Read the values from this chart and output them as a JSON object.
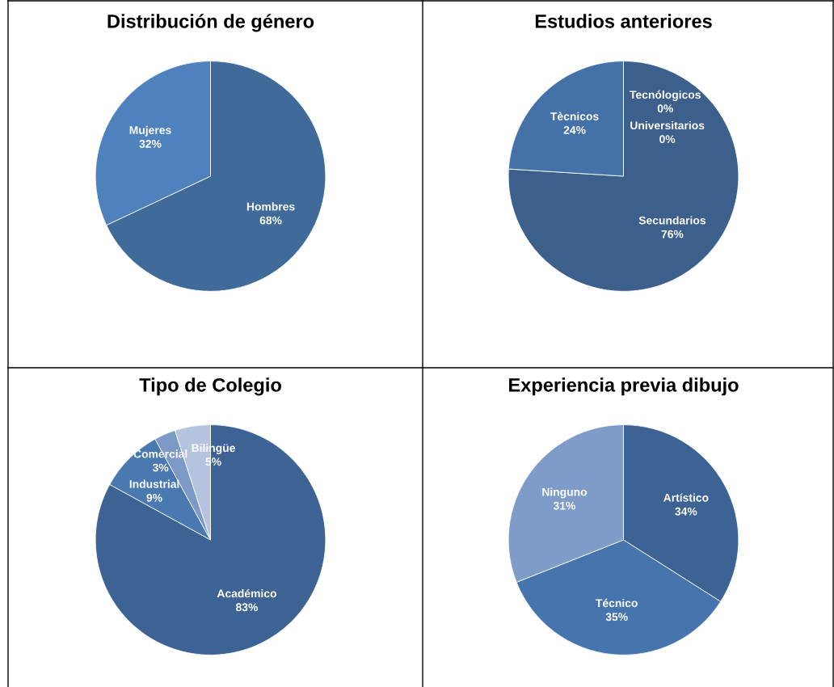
{
  "chart_data": [
    {
      "type": "pie",
      "title": "Distribución de género",
      "categories": [
        "Hombres",
        "Mujeres"
      ],
      "values": [
        68,
        32
      ],
      "colors": [
        "#3f6a9a",
        "#4f81bd"
      ],
      "value_labels": [
        "68%",
        "32%"
      ],
      "legend": false
    },
    {
      "type": "pie",
      "title": "Estudios anteriores",
      "categories": [
        "Secundarios",
        "Tècnicos",
        "Tecnólogicos",
        "Universitarios"
      ],
      "values": [
        76,
        24,
        0,
        0
      ],
      "colors": [
        "#3d5f8c",
        "#4471a8",
        "#4f81bd",
        "#7f9bc7"
      ],
      "value_labels": [
        "76%",
        "24%",
        "0%",
        "0%"
      ],
      "legend": false
    },
    {
      "type": "pie",
      "title": "Tipo de Colegio",
      "categories": [
        "Académico",
        "Industrial",
        "Comercial",
        "Bilingüe"
      ],
      "values": [
        83,
        9,
        3,
        5
      ],
      "colors": [
        "#3d6394",
        "#4a78b0",
        "#7d99c6",
        "#b4c3de"
      ],
      "value_labels": [
        "83%",
        "9%",
        "3%",
        "5%"
      ],
      "legend": false
    },
    {
      "type": "pie",
      "title": "Experiencia previa dibujo",
      "categories": [
        "Artístico",
        "Técnico",
        "Ninguno"
      ],
      "values": [
        34,
        35,
        31
      ],
      "colors": [
        "#3d6394",
        "#4675ae",
        "#7f9bc7"
      ],
      "value_labels": [
        "34%",
        "35%",
        "31%"
      ],
      "legend": false
    }
  ]
}
